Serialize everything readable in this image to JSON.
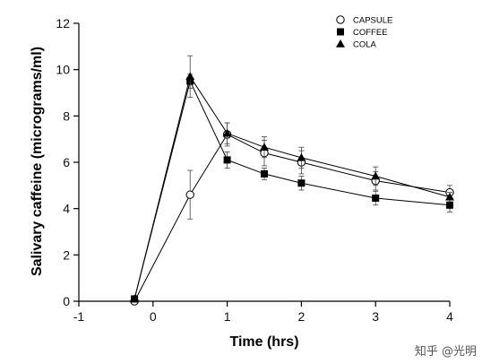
{
  "chart_data": {
    "type": "line",
    "xlabel": "Time (hrs)",
    "ylabel": "Salivary caffeine (micrograms/ml)",
    "xlim": [
      -1,
      4
    ],
    "ylim": [
      0,
      12
    ],
    "xticks": [
      "-1",
      "0",
      "1",
      "2",
      "3",
      "4"
    ],
    "yticks": [
      "0",
      "2",
      "4",
      "6",
      "8",
      "10",
      "12"
    ],
    "legend_position": "top-right",
    "grid": false,
    "series": [
      {
        "name": "CAPSULE",
        "marker": "open-circle",
        "x": [
          -0.25,
          0.5,
          1,
          1.5,
          2,
          3,
          4
        ],
        "y": [
          0.0,
          4.6,
          7.2,
          6.4,
          6.0,
          5.2,
          4.7
        ],
        "err": [
          0.1,
          1.05,
          0.5,
          0.55,
          0.5,
          0.4,
          0.3
        ]
      },
      {
        "name": "COFFEE",
        "marker": "filled-square",
        "x": [
          -0.25,
          0.5,
          1,
          1.5,
          2,
          3,
          4
        ],
        "y": [
          0.1,
          9.5,
          6.1,
          5.5,
          5.1,
          4.45,
          4.15
        ],
        "err": [
          0.05,
          0.3,
          0.35,
          0.25,
          0.3,
          0.3,
          0.3
        ]
      },
      {
        "name": "COLA",
        "marker": "filled-triangle",
        "x": [
          -0.25,
          0.5,
          1,
          1.5,
          2,
          3,
          4
        ],
        "y": [
          0.1,
          9.7,
          7.25,
          6.65,
          6.2,
          5.4,
          4.5
        ],
        "err": [
          0.05,
          0.9,
          0.45,
          0.45,
          0.45,
          0.4,
          0.2
        ]
      }
    ]
  },
  "watermark": {
    "text": "知乎 @光明"
  }
}
